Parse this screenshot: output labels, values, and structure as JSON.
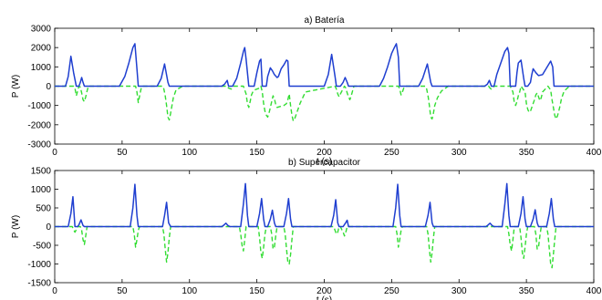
{
  "chart_data": [
    {
      "type": "line",
      "title": "a) Batería",
      "xlabel": "t (s)",
      "ylabel": "P (W)",
      "xlim": [
        0,
        400
      ],
      "ylim": [
        -3000,
        3000
      ],
      "xticks": [
        0,
        50,
        100,
        150,
        200,
        250,
        300,
        350,
        400
      ],
      "yticks": [
        3000,
        2000,
        1000,
        0,
        -1000,
        -2000,
        -3000
      ],
      "grid": false,
      "series": [
        {
          "color": "#1f3fd0",
          "style": "solid",
          "x": [
            0,
            8,
            10,
            12,
            14,
            16,
            17,
            18,
            19,
            20,
            21,
            22,
            23,
            48,
            52,
            55,
            58,
            59.5,
            61,
            62,
            76,
            79,
            81.5,
            84,
            85,
            124,
            126,
            128,
            129,
            132,
            135,
            138,
            140,
            141,
            142,
            144,
            146,
            148,
            150,
            152,
            153,
            154,
            156,
            157,
            158,
            160,
            161.5,
            163,
            165,
            166,
            168,
            170,
            172,
            173,
            174,
            176,
            200,
            203,
            205.5,
            208,
            209,
            212,
            214,
            215.5,
            217,
            218,
            241,
            244,
            247,
            250,
            252,
            253.5,
            255,
            256,
            270,
            273,
            276.5,
            279,
            280,
            319,
            321,
            322.5,
            324,
            326,
            328,
            331,
            334,
            336,
            337,
            338,
            340,
            342,
            343,
            344,
            346,
            348,
            349,
            350,
            351,
            353,
            354,
            355,
            357,
            359,
            362,
            365,
            368,
            369.5,
            370.5,
            372,
            400
          ],
          "y": [
            0,
            0,
            500,
            1550,
            700,
            0,
            0,
            0,
            200,
            450,
            200,
            0,
            0,
            0,
            500,
            1200,
            2000,
            2200,
            900,
            0,
            0,
            400,
            1150,
            200,
            0,
            0,
            100,
            300,
            0,
            0,
            400,
            1200,
            1800,
            2000,
            1400,
            0,
            0,
            0,
            700,
            1300,
            1400,
            0,
            0,
            0,
            500,
            950,
            800,
            600,
            450,
            500,
            900,
            1100,
            1350,
            1300,
            0,
            0,
            0,
            600,
            1650,
            500,
            0,
            0,
            200,
            450,
            200,
            0,
            0,
            400,
            1000,
            1700,
            2000,
            2200,
            1500,
            0,
            0,
            400,
            1150,
            200,
            0,
            0,
            100,
            300,
            0,
            0,
            600,
            1200,
            1800,
            2000,
            1700,
            0,
            0,
            0,
            700,
            1200,
            1350,
            400,
            0,
            0,
            0,
            200,
            600,
            900,
            700,
            550,
            600,
            950,
            1300,
            1000,
            0,
            0,
            0
          ]
        },
        {
          "color": "#33dd33",
          "style": "dashed",
          "x": [
            0,
            14,
            15,
            16,
            17,
            18,
            19,
            20,
            21,
            22,
            23,
            24,
            25,
            60,
            61,
            62,
            63,
            64,
            65,
            80,
            81,
            82,
            83,
            84,
            85,
            86,
            87,
            88,
            90,
            95,
            128,
            129,
            131,
            132,
            133,
            140,
            142,
            143,
            144,
            145,
            146,
            147,
            148,
            150,
            152,
            153,
            154,
            155,
            156,
            157,
            158,
            159,
            160,
            161,
            162,
            163,
            164,
            165,
            170,
            172,
            173,
            174,
            175,
            176,
            177,
            178,
            179,
            180,
            182,
            186,
            208,
            209,
            210,
            211,
            212,
            215,
            216,
            217,
            218,
            219,
            220,
            221,
            222,
            255,
            256,
            257,
            258,
            259,
            260,
            275,
            276,
            277,
            278,
            279,
            280,
            281,
            282,
            284,
            287,
            292,
            322,
            323,
            324,
            325,
            326,
            338,
            340,
            341,
            342,
            343,
            344,
            345,
            346,
            349,
            350,
            351,
            352,
            353,
            354,
            355,
            356,
            357,
            358,
            359,
            360,
            361,
            362,
            366,
            368,
            369,
            370,
            371,
            372,
            373,
            374,
            375,
            376,
            378,
            382,
            400
          ],
          "y": [
            0,
            0,
            -100,
            -500,
            -250,
            0,
            -50,
            -350,
            -700,
            -800,
            -550,
            -250,
            0,
            0,
            -300,
            -850,
            -500,
            -150,
            0,
            0,
            -150,
            -500,
            -1000,
            -1600,
            -1750,
            -1400,
            -1000,
            -600,
            -200,
            0,
            0,
            -100,
            -150,
            -100,
            0,
            0,
            -400,
            -900,
            -1100,
            -800,
            -450,
            -300,
            -200,
            -150,
            -100,
            0,
            -300,
            -900,
            -1300,
            -1500,
            -1600,
            -1400,
            -1100,
            -800,
            -500,
            -650,
            -950,
            -1100,
            -1000,
            -900,
            -700,
            -400,
            -1000,
            -1500,
            -1800,
            -1700,
            -1500,
            -1300,
            -900,
            -300,
            0,
            -150,
            -400,
            -550,
            -400,
            0,
            -100,
            -350,
            -550,
            -700,
            -500,
            -250,
            0,
            0,
            -150,
            -450,
            -300,
            -100,
            0,
            0,
            -150,
            -500,
            -1000,
            -1600,
            -1700,
            -1400,
            -1000,
            -600,
            -250,
            0,
            0,
            -100,
            -150,
            -100,
            0,
            0,
            -300,
            -850,
            -1000,
            -800,
            -500,
            -300,
            0,
            -300,
            -900,
            -1200,
            -1350,
            -1300,
            -1100,
            -900,
            -700,
            -450,
            -350,
            -550,
            -750,
            -600,
            -300,
            0,
            -200,
            -700,
            -1100,
            -1500,
            -1700,
            -1550,
            -1300,
            -1000,
            -650,
            -250,
            0,
            0
          ]
        }
      ]
    },
    {
      "type": "line",
      "title": "b) Supercapacitor",
      "xlabel": "t (s)",
      "ylabel": "P (W)",
      "xlim": [
        0,
        400
      ],
      "ylim": [
        -1500,
        1500
      ],
      "xticks": [
        0,
        50,
        100,
        150,
        200,
        250,
        300,
        350,
        400
      ],
      "yticks": [
        1500,
        1000,
        500,
        0,
        -500,
        -1000,
        -1500
      ],
      "grid": false,
      "series": [
        {
          "color": "#1f3fd0",
          "style": "solid",
          "x": [
            0,
            10,
            12,
            13.5,
            15,
            17,
            18,
            19.5,
            21,
            22,
            56,
            58,
            59.5,
            61,
            62,
            80,
            81.5,
            83,
            84.5,
            86,
            124,
            125.5,
            127,
            128.5,
            130,
            138,
            140,
            141.5,
            143,
            144,
            150,
            152,
            153.5,
            155,
            156,
            158,
            160,
            161.5,
            163,
            164,
            170,
            172,
            173.5,
            175,
            176,
            205,
            207,
            208.5,
            210,
            211,
            214,
            215.5,
            217,
            218,
            251,
            253,
            254.5,
            256,
            257,
            275,
            277,
            278.5,
            280,
            281,
            320,
            321.5,
            323,
            324.5,
            326,
            332,
            334,
            335.5,
            337,
            338,
            344,
            346,
            347.5,
            349,
            350,
            353,
            355,
            356.5,
            358,
            359,
            365,
            367,
            368.5,
            370,
            371,
            400
          ],
          "y": [
            0,
            0,
            350,
            800,
            0,
            0,
            50,
            180,
            30,
            0,
            0,
            500,
            1130,
            300,
            0,
            0,
            300,
            650,
            100,
            0,
            0,
            40,
            90,
            30,
            0,
            0,
            600,
            1150,
            300,
            0,
            0,
            350,
            750,
            200,
            0,
            0,
            200,
            440,
            100,
            0,
            0,
            350,
            750,
            200,
            0,
            0,
            300,
            720,
            100,
            0,
            0,
            80,
            170,
            0,
            0,
            500,
            1130,
            300,
            0,
            0,
            300,
            650,
            100,
            0,
            0,
            40,
            90,
            30,
            0,
            0,
            600,
            1150,
            300,
            0,
            0,
            350,
            800,
            200,
            0,
            0,
            200,
            450,
            100,
            0,
            0,
            350,
            750,
            200,
            0,
            0
          ]
        },
        {
          "color": "#33dd33",
          "style": "dashed",
          "x": [
            0,
            13,
            14,
            15,
            16,
            17,
            19,
            20,
            21,
            22,
            23,
            24,
            58,
            59,
            60,
            61,
            62,
            63,
            80,
            81,
            82,
            83,
            84,
            85,
            86,
            137,
            138,
            139,
            140,
            141,
            142,
            151,
            152,
            153,
            154,
            155,
            156,
            157,
            160,
            161,
            162,
            163,
            164,
            165,
            170,
            171,
            172,
            173,
            174,
            175,
            176,
            177,
            207,
            208,
            209,
            210,
            211,
            212,
            213,
            214,
            215,
            216,
            217,
            253,
            254,
            255,
            256,
            257,
            258,
            276,
            277,
            278,
            279,
            280,
            281,
            282,
            336,
            337,
            338,
            339,
            340,
            341,
            345,
            346,
            347,
            348,
            349,
            350,
            351,
            356,
            357,
            358,
            359,
            360,
            361,
            365,
            366,
            367,
            368,
            369,
            370,
            371,
            372,
            400
          ],
          "y": [
            0,
            0,
            -80,
            -150,
            -80,
            0,
            0,
            -100,
            -350,
            -480,
            -250,
            0,
            0,
            -200,
            -550,
            -350,
            -100,
            0,
            0,
            -200,
            -600,
            -950,
            -700,
            -300,
            0,
            0,
            -200,
            -500,
            -650,
            -350,
            0,
            0,
            -300,
            -700,
            -850,
            -550,
            -200,
            0,
            0,
            -200,
            -600,
            -550,
            -250,
            0,
            0,
            -200,
            -600,
            -950,
            -1000,
            -750,
            -350,
            0,
            0,
            -100,
            -200,
            -150,
            0,
            0,
            -80,
            -150,
            -250,
            -150,
            0,
            0,
            -200,
            -550,
            -350,
            -100,
            0,
            0,
            -200,
            -600,
            -950,
            -700,
            -300,
            0,
            0,
            -200,
            -500,
            -650,
            -350,
            0,
            0,
            -300,
            -700,
            -850,
            -550,
            -200,
            0,
            0,
            -200,
            -600,
            -550,
            -250,
            0,
            0,
            -200,
            -600,
            -1000,
            -1100,
            -750,
            -350,
            0,
            0
          ]
        }
      ]
    }
  ]
}
